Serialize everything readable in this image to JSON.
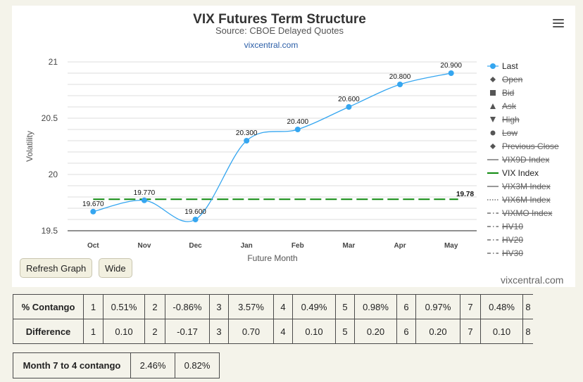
{
  "chart_data": {
    "type": "line",
    "title": "VIX Futures Term Structure",
    "subtitle": "Source: CBOE Delayed Quotes",
    "source_link": "vixcentral.com",
    "xlabel": "Future Month",
    "ylabel": "Volatility",
    "ylim": [
      19.5,
      21
    ],
    "yticks": [
      "19.5",
      "20",
      "20.5",
      "21"
    ],
    "categories": [
      "Oct",
      "Nov",
      "Dec",
      "Jan",
      "Feb",
      "Mar",
      "Apr",
      "May"
    ],
    "series": [
      {
        "name": "Last",
        "values": [
          19.67,
          19.77,
          19.6,
          20.3,
          20.4,
          20.6,
          20.8,
          20.9
        ],
        "labels": [
          "19.670",
          "19.770",
          "19.600",
          "20.300",
          "20.400",
          "20.600",
          "20.800",
          "20.900"
        ],
        "color": "#35a6f0"
      },
      {
        "name": "VIX Index",
        "value": 19.78,
        "label": "19.78",
        "color": "#0f8a0f",
        "style": "dashed"
      }
    ],
    "legend_position": "right",
    "legend": [
      {
        "name": "Last",
        "symbol": "circle",
        "active": true
      },
      {
        "name": "Open",
        "symbol": "diamond",
        "active": false
      },
      {
        "name": "Bid",
        "symbol": "square",
        "active": false
      },
      {
        "name": "Ask",
        "symbol": "triangle",
        "active": false
      },
      {
        "name": "High",
        "symbol": "triangle-down",
        "active": false
      },
      {
        "name": "Low",
        "symbol": "circle",
        "active": false
      },
      {
        "name": "Previous Close",
        "symbol": "diamond",
        "active": false
      },
      {
        "name": "VIX9D Index",
        "symbol": "line",
        "active": false
      },
      {
        "name": "VIX Index",
        "symbol": "line",
        "active": true,
        "color": "#0f8a0f"
      },
      {
        "name": "VIX3M Index",
        "symbol": "line",
        "active": false
      },
      {
        "name": "VIX6M Index",
        "symbol": "dotted",
        "active": false
      },
      {
        "name": "VIXMO Index",
        "symbol": "dashdot",
        "active": false
      },
      {
        "name": "HV10",
        "symbol": "dashdot",
        "active": false
      },
      {
        "name": "HV20",
        "symbol": "dashdot",
        "active": false
      },
      {
        "name": "HV30",
        "symbol": "dashdot",
        "active": false
      }
    ]
  },
  "buttons": {
    "refresh": "Refresh Graph",
    "wide": "Wide"
  },
  "credit": "vixcentral.com",
  "contango_table": {
    "rows": [
      {
        "label": "% Contango",
        "cells": [
          [
            "1",
            "0.51%"
          ],
          [
            "2",
            "-0.86%"
          ],
          [
            "3",
            "3.57%"
          ],
          [
            "4",
            "0.49%"
          ],
          [
            "5",
            "0.98%"
          ],
          [
            "6",
            "0.97%"
          ],
          [
            "7",
            "0.48%"
          ],
          [
            "8",
            ""
          ]
        ]
      },
      {
        "label": "Difference",
        "cells": [
          [
            "1",
            "0.10"
          ],
          [
            "2",
            "-0.17"
          ],
          [
            "3",
            "0.70"
          ],
          [
            "4",
            "0.10"
          ],
          [
            "5",
            "0.20"
          ],
          [
            "6",
            "0.20"
          ],
          [
            "7",
            "0.10"
          ],
          [
            "8",
            ""
          ]
        ]
      }
    ]
  },
  "month_table": {
    "label": "Month 7 to 4 contango",
    "value1": "2.46%",
    "value2": "0.82%"
  }
}
